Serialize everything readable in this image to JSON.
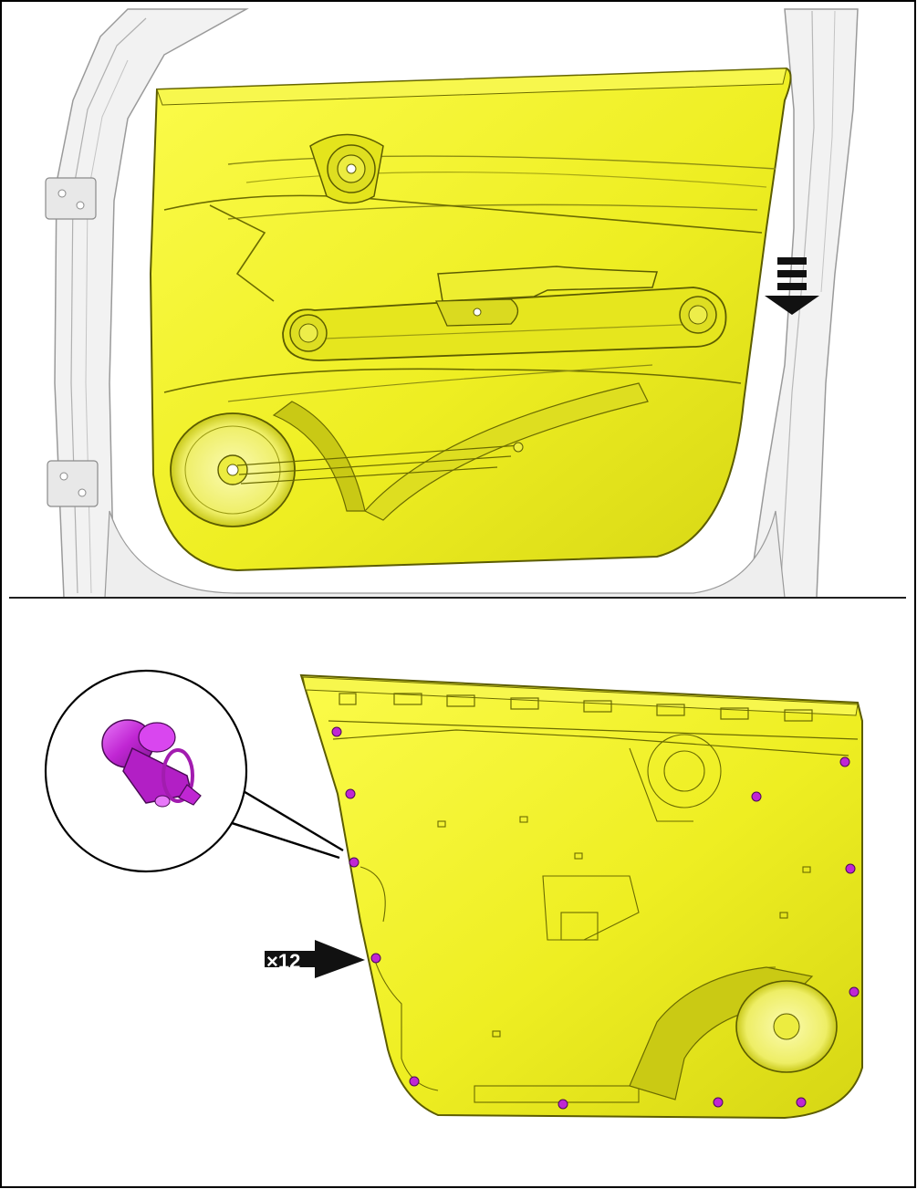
{
  "colors": {
    "panel": "#f2f22a",
    "panel_shadow": "#c9c919",
    "panel_edge": "#6b6b00",
    "door_frame": "#f3f3f3",
    "frame_line": "#8a8a8a",
    "clip": "#c026d3",
    "arrow": "#111111"
  },
  "icons": {
    "removal_arrow": "striped-down-arrow-icon",
    "clip_detail": "push-pin-clip-icon",
    "pointer": "pointer-arrow-icon"
  },
  "callout": {
    "quantity": "×12"
  }
}
